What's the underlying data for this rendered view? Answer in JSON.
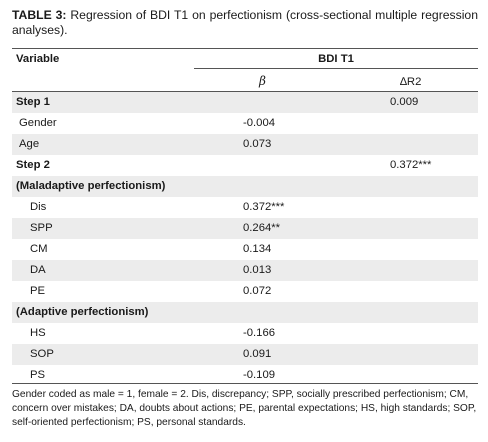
{
  "caption": {
    "label": "TABLE 3:",
    "text": "Regression of BDI T1 on perfectionism (cross-sectional multiple regression analyses)."
  },
  "header": {
    "variable": "Variable",
    "group": "BDI T1",
    "beta": "β",
    "delta_r2": "∆R2"
  },
  "rows": [
    {
      "label": "Step 1",
      "beta": "",
      "delta_r2": "0.009"
    },
    {
      "label": "Gender",
      "beta": "-0.004",
      "delta_r2": ""
    },
    {
      "label": "Age",
      "beta": "0.073",
      "delta_r2": ""
    },
    {
      "label": "Step 2",
      "beta": "",
      "delta_r2": "0.372***"
    },
    {
      "label": "(Maladaptive perfectionism)",
      "beta": "",
      "delta_r2": ""
    },
    {
      "label": "Dis",
      "beta": "0.372***",
      "delta_r2": ""
    },
    {
      "label": "SPP",
      "beta": "0.264**",
      "delta_r2": ""
    },
    {
      "label": "CM",
      "beta": "0.134",
      "delta_r2": ""
    },
    {
      "label": "DA",
      "beta": "0.013",
      "delta_r2": ""
    },
    {
      "label": "PE",
      "beta": "0.072",
      "delta_r2": ""
    },
    {
      "label": "(Adaptive perfectionism)",
      "beta": "",
      "delta_r2": ""
    },
    {
      "label": "HS",
      "beta": "-0.166",
      "delta_r2": ""
    },
    {
      "label": "SOP",
      "beta": "0.091",
      "delta_r2": ""
    },
    {
      "label": "PS",
      "beta": "-0.109",
      "delta_r2": ""
    }
  ],
  "footnote": "Gender coded as male = 1, female = 2. Dis, discrepancy; SPP, socially prescribed perfectionism; CM, concern over mistakes; DA, doubts about actions; PE, parental expectations; HS, high standards; SOP, self-oriented perfectionism; PS, personal standards."
}
